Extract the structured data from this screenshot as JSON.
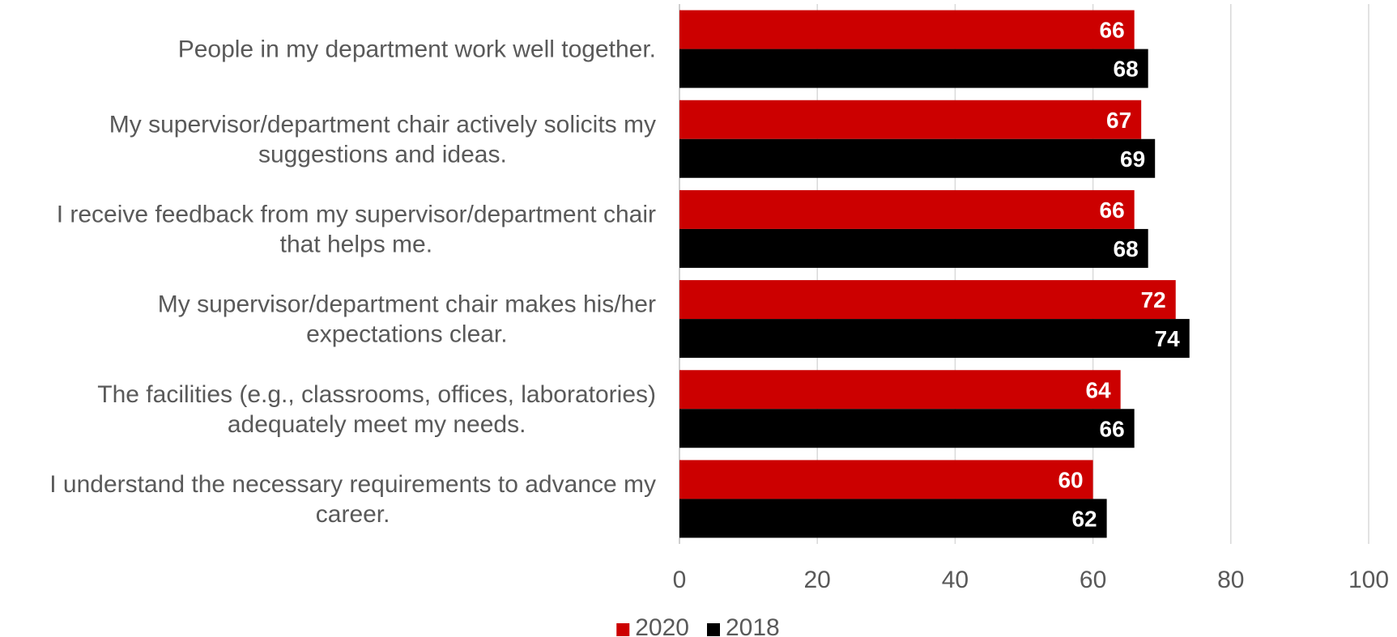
{
  "chart_data": {
    "type": "bar",
    "orientation": "horizontal",
    "categories": [
      "People in my department work well together.",
      "My supervisor/department chair actively solicits my suggestions and ideas.",
      "I receive feedback from my supervisor/department chair that helps me.",
      "My supervisor/department chair makes his/her expectations clear.",
      "The facilities (e.g., classrooms, offices, laboratories) adequately meet my needs.",
      "I understand the necessary requirements to advance my career."
    ],
    "category_lines": [
      [
        "People in my department work well together."
      ],
      [
        "My supervisor/department chair actively solicits my",
        "suggestions and ideas."
      ],
      [
        "I receive feedback from my supervisor/department chair",
        "that helps me."
      ],
      [
        "My supervisor/department chair makes his/her",
        "expectations clear."
      ],
      [
        "The facilities (e.g., classrooms, offices, laboratories)",
        "adequately meet my needs."
      ],
      [
        "I understand the necessary requirements to advance my",
        "career."
      ]
    ],
    "series": [
      {
        "name": "2020",
        "color": "#cc0000",
        "values": [
          66,
          67,
          66,
          72,
          64,
          60
        ]
      },
      {
        "name": "2018",
        "color": "#000000",
        "values": [
          68,
          69,
          68,
          74,
          66,
          62
        ]
      }
    ],
    "xlim": [
      0,
      100
    ],
    "xticks": [
      "0",
      "20",
      "40",
      "60",
      "80",
      "100"
    ],
    "grid": true,
    "legend_position": "bottom",
    "data_labels": true
  }
}
